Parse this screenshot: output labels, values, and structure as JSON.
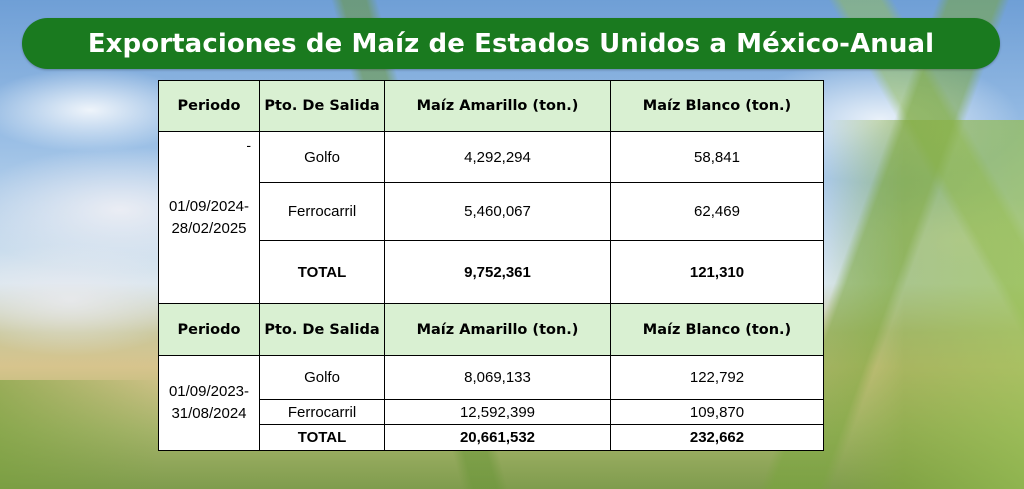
{
  "title": "Exportaciones de Maíz de Estados Unidos a México-Anual",
  "headers": {
    "periodo": "Periodo",
    "salida": "Pto. De Salida",
    "amarillo": "Maíz Amarillo (ton.)",
    "blanco": "Maíz Blanco (ton.)"
  },
  "sections": [
    {
      "dash": "-",
      "period_line1": "01/09/2024-",
      "period_line2": "28/02/2025",
      "rows": [
        {
          "port": "Golfo",
          "amarillo": "4,292,294",
          "blanco": "58,841"
        },
        {
          "port": "Ferrocarril",
          "amarillo": "5,460,067",
          "blanco": "62,469"
        }
      ],
      "total": {
        "label": "TOTAL",
        "amarillo": "9,752,361",
        "blanco": "121,310"
      }
    },
    {
      "period_line1": "01/09/2023-",
      "period_line2": "31/08/2024",
      "rows": [
        {
          "port": "Golfo",
          "amarillo": "8,069,133",
          "blanco": "122,792"
        },
        {
          "port": "Ferrocarril",
          "amarillo": "12,592,399",
          "blanco": "109,870"
        }
      ],
      "total": {
        "label": "TOTAL",
        "amarillo": "20,661,532",
        "blanco": "232,662"
      }
    }
  ],
  "colors": {
    "banner": "#1a7a1f",
    "header_fill": "#d9f0d2"
  }
}
